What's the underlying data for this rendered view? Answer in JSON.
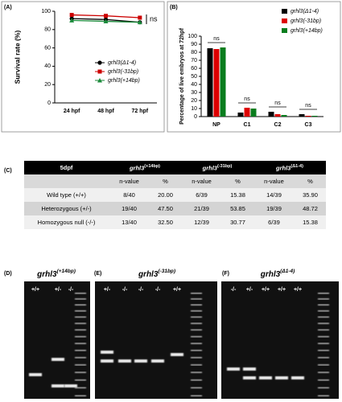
{
  "panels": {
    "a": "(A)",
    "b": "(B)",
    "c": "(C)",
    "d": "(D)",
    "e": "(E)",
    "f": "(F)"
  },
  "chart_data": [
    {
      "type": "line",
      "ylabel": "Survival rate (%)",
      "categories": [
        "24 hpf",
        "48 hpf",
        "72 hpf"
      ],
      "ylim": [
        0,
        100
      ],
      "yticks": [
        0,
        20,
        40,
        60,
        80,
        100
      ],
      "annotation": "ns",
      "series": [
        {
          "name": "grhl3(Δ1-4)",
          "color": "#000000",
          "marker": "circle",
          "values": [
            92,
            91,
            88
          ]
        },
        {
          "name": "grhl3(-31bp)",
          "color": "#cc0000",
          "marker": "square",
          "values": [
            96,
            95,
            93
          ]
        },
        {
          "name": "grhl3(+14bp)",
          "color": "#1a8a3a",
          "marker": "triangle",
          "values": [
            90,
            89,
            88
          ]
        }
      ]
    },
    {
      "type": "bar",
      "ylabel": "Percentage of live embryos at 72hpf",
      "categories": [
        "NP",
        "C1",
        "C2",
        "C3"
      ],
      "ylim": [
        0,
        100
      ],
      "yticks": [
        0,
        10,
        20,
        30,
        40,
        50,
        60,
        70,
        80,
        90,
        100
      ],
      "annotations": [
        "ns",
        "ns",
        "ns",
        "ns"
      ],
      "series": [
        {
          "name": "grhl3(Δ1-4)",
          "color": "#000000",
          "values": [
            85,
            5,
            6,
            3
          ]
        },
        {
          "name": "grhl3(-31bp)",
          "color": "#dd0000",
          "values": [
            84,
            11,
            3,
            1
          ]
        },
        {
          "name": "grhl3(+14bp)",
          "color": "#0a7d1e",
          "values": [
            86,
            10,
            2,
            1
          ]
        }
      ]
    }
  ],
  "table": {
    "header": [
      "5dpf",
      {
        "gene": "grhl3",
        "allele": "(+14bp)"
      },
      {
        "gene": "grhl3",
        "allele": "(-31bp)"
      },
      {
        "gene": "grhl3",
        "allele": "(Δ1-4)"
      }
    ],
    "subheader": [
      "n-value",
      "%",
      "n-value",
      "%",
      "n-value",
      "%"
    ],
    "rows": [
      [
        "Wild type (+/+)",
        "8/40",
        "20.00",
        "6/39",
        "15.38",
        "14/39",
        "35.90"
      ],
      [
        "Heterozygous (+/-)",
        "19/40",
        "47.50",
        "21/39",
        "53.85",
        "19/39",
        "48.72"
      ],
      [
        "Homozygous null  (-/-)",
        "13/40",
        "32.50",
        "12/39",
        "30.77",
        "6/39",
        "15.38"
      ]
    ]
  },
  "gels": [
    {
      "gene": "grhl3",
      "allele": "(+14bp)",
      "lanes": [
        "+/+",
        "+/-",
        "-/-"
      ]
    },
    {
      "gene": "grhl3",
      "allele": "(-31bp)",
      "lanes": [
        "+/-",
        "-/-",
        "-/-",
        "-/-",
        "+/+"
      ]
    },
    {
      "gene": "grhl3",
      "allele": "(Δ1-4)",
      "lanes": [
        "-/-",
        "+/-",
        "+/+",
        "+/+",
        "+/+"
      ]
    }
  ]
}
